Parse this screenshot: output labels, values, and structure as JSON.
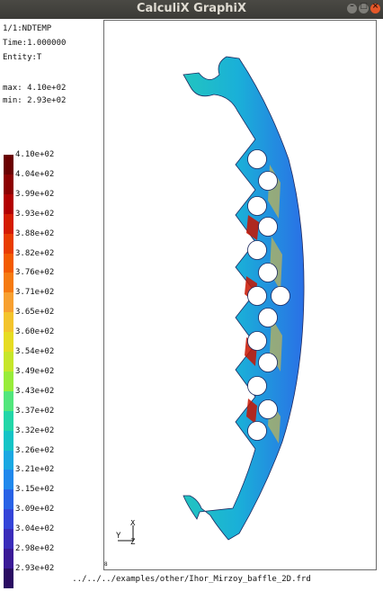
{
  "window": {
    "title": "CalculiX GraphiX"
  },
  "info": {
    "step": "1/1:NDTEMP",
    "time": "Time:1.000000",
    "entity": "Entity:T",
    "max": "max: 4.10e+02",
    "min": "min: 2.93e+02"
  },
  "legend": {
    "labels": [
      "4.10e+02",
      "4.04e+02",
      "3.99e+02",
      "3.93e+02",
      "3.88e+02",
      "3.82e+02",
      "3.76e+02",
      "3.71e+02",
      "3.65e+02",
      "3.60e+02",
      "3.54e+02",
      "3.49e+02",
      "3.43e+02",
      "3.37e+02",
      "3.32e+02",
      "3.26e+02",
      "3.21e+02",
      "3.15e+02",
      "3.09e+02",
      "3.04e+02",
      "2.98e+02",
      "2.93e+02"
    ],
    "colors": [
      "#6a0000",
      "#8c0000",
      "#b20000",
      "#d41c00",
      "#e83c00",
      "#f25a00",
      "#f57a10",
      "#f7a030",
      "#f3c42c",
      "#e6dc22",
      "#c6e62a",
      "#98ec3a",
      "#52e67c",
      "#22d6a8",
      "#14c4c6",
      "#1aa8e2",
      "#2088ec",
      "#2862e6",
      "#3444d8",
      "#3a2cba",
      "#3a1a96",
      "#2a0c62"
    ]
  },
  "axes": {
    "x": "X",
    "y": "Y",
    "z": "Z"
  },
  "file": "../../../examples/other/Ihor_Mirzoy_baffle_2D.frd",
  "corner_mark": "8"
}
